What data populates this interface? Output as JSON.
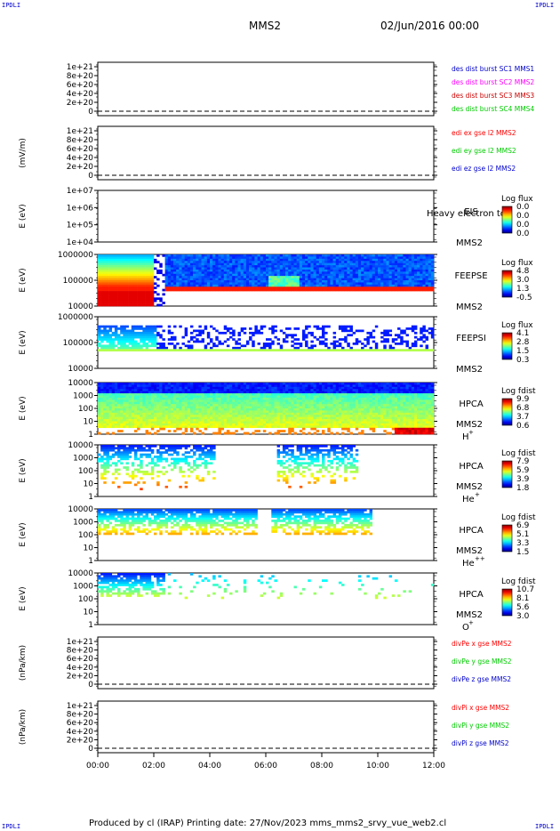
{
  "corner_tag": "IPDLI",
  "header": {
    "spacecraft": "MMS2",
    "datetime": "02/Jun/2016 00:00"
  },
  "footer": {
    "text": "Produced by cl (IRAP)   Printing date: 27/Nov/2023   mms_mms2_srvy_vue_web2.cl"
  },
  "colors": {
    "red": "#ff0000",
    "magenta": "#ff00ff",
    "darkred": "#cc0000",
    "green": "#00cc00",
    "blue": "#0000cc"
  },
  "chart_data": [
    {
      "type": "line",
      "ylabel": "",
      "yticks": [
        "1e+21",
        "8e+20",
        "6e+20",
        "4e+20",
        "2e+20",
        "0"
      ],
      "legend": [
        {
          "text": "des dist burst SC1 MMS1",
          "color": "#0000cc"
        },
        {
          "text": "des dist burst SC2 MMS2",
          "color": "#ff00ff"
        },
        {
          "text": "des dist burst SC3 MMS3",
          "color": "#cc0000"
        },
        {
          "text": "des dist burst SC4 MMS4",
          "color": "#00cc00"
        }
      ]
    },
    {
      "type": "line",
      "ylabel": "(mV/m)",
      "yticks": [
        "1e+21",
        "8e+20",
        "6e+20",
        "4e+20",
        "2e+20",
        "0"
      ],
      "legend": [
        {
          "text": "edi ex gse l2 MMS2",
          "color": "#ff0000"
        },
        {
          "text": "edi ey gse l2 MMS2",
          "color": "#00cc00"
        },
        {
          "text": "edi ez gse l2 MMS2",
          "color": "#0000cc"
        }
      ]
    },
    {
      "type": "heatmap",
      "ylabel": "E (eV)",
      "yticks": [
        "1e+07",
        "1e+06",
        "1e+05",
        "1e+04"
      ],
      "instrument": "EIS",
      "probe": "MMS2",
      "species": "",
      "overlay": "Heavy electron to",
      "cb_title": "Log flux",
      "cb_ticks": [
        "0.0",
        "0.0",
        "0.0",
        "0.0"
      ]
    },
    {
      "type": "heatmap",
      "ylabel": "E (eV)",
      "yticks": [
        "1000000",
        "100000",
        "10000"
      ],
      "instrument": "FEEPSE",
      "probe": "MMS2",
      "species": "",
      "cb_title": "Log flux",
      "cb_ticks": [
        "4.8",
        "3.0",
        "1.3",
        "-0.5"
      ]
    },
    {
      "type": "heatmap",
      "ylabel": "E (eV)",
      "yticks": [
        "1000000",
        "100000",
        "10000"
      ],
      "instrument": "FEEPSI",
      "probe": "MMS2",
      "species": "",
      "cb_title": "Log flux",
      "cb_ticks": [
        "4.1",
        "2.8",
        "1.5",
        "0.3"
      ]
    },
    {
      "type": "heatmap",
      "ylabel": "E (eV)",
      "yticks": [
        "10000",
        "1000",
        "100",
        "10",
        "1"
      ],
      "instrument": "HPCA",
      "probe": "MMS2",
      "species": "H",
      "species_sup": "+",
      "cb_title": "Log fdist",
      "cb_ticks": [
        "9.9",
        "6.8",
        "3.7",
        "0.6"
      ]
    },
    {
      "type": "heatmap",
      "ylabel": "E (eV)",
      "yticks": [
        "10000",
        "1000",
        "100",
        "10",
        "1"
      ],
      "instrument": "HPCA",
      "probe": "MMS2",
      "species": "He",
      "species_sup": "+",
      "cb_title": "Log fdist",
      "cb_ticks": [
        "7.9",
        "5.9",
        "3.9",
        "1.8"
      ]
    },
    {
      "type": "heatmap",
      "ylabel": "E (eV)",
      "yticks": [
        "10000",
        "1000",
        "100",
        "10",
        "1"
      ],
      "instrument": "HPCA",
      "probe": "MMS2",
      "species": "He",
      "species_sup": "++",
      "cb_title": "Log fdist",
      "cb_ticks": [
        "6.9",
        "5.1",
        "3.3",
        "1.5"
      ]
    },
    {
      "type": "heatmap",
      "ylabel": "E (eV)",
      "yticks": [
        "10000",
        "1000",
        "100",
        "10",
        "1"
      ],
      "instrument": "HPCA",
      "probe": "MMS2",
      "species": "O",
      "species_sup": "+",
      "cb_title": "Log fdist",
      "cb_ticks": [
        "10.7",
        "8.1",
        "5.6",
        "3.0"
      ]
    },
    {
      "type": "line",
      "ylabel": "(nPa/km)",
      "yticks": [
        "1e+21",
        "8e+20",
        "6e+20",
        "4e+20",
        "2e+20",
        "0"
      ],
      "legend": [
        {
          "text": "divPe x gse MMS2",
          "color": "#ff0000"
        },
        {
          "text": "divPe y gse MMS2",
          "color": "#00cc00"
        },
        {
          "text": "divPe z gse MMS2",
          "color": "#0000cc"
        }
      ]
    },
    {
      "type": "line",
      "ylabel": "(nPa/km)",
      "yticks": [
        "1e+21",
        "8e+20",
        "6e+20",
        "4e+20",
        "2e+20",
        "0"
      ],
      "legend": [
        {
          "text": "divPi x gse MMS2",
          "color": "#ff0000"
        },
        {
          "text": "divPi y gse MMS2",
          "color": "#00cc00"
        },
        {
          "text": "divPi z gse MMS2",
          "color": "#0000cc"
        }
      ]
    }
  ],
  "xaxis": {
    "ticks": [
      "00:00",
      "02:00",
      "04:00",
      "06:00",
      "08:00",
      "10:00",
      "12:00"
    ],
    "xlim_hours": [
      0,
      12
    ]
  }
}
